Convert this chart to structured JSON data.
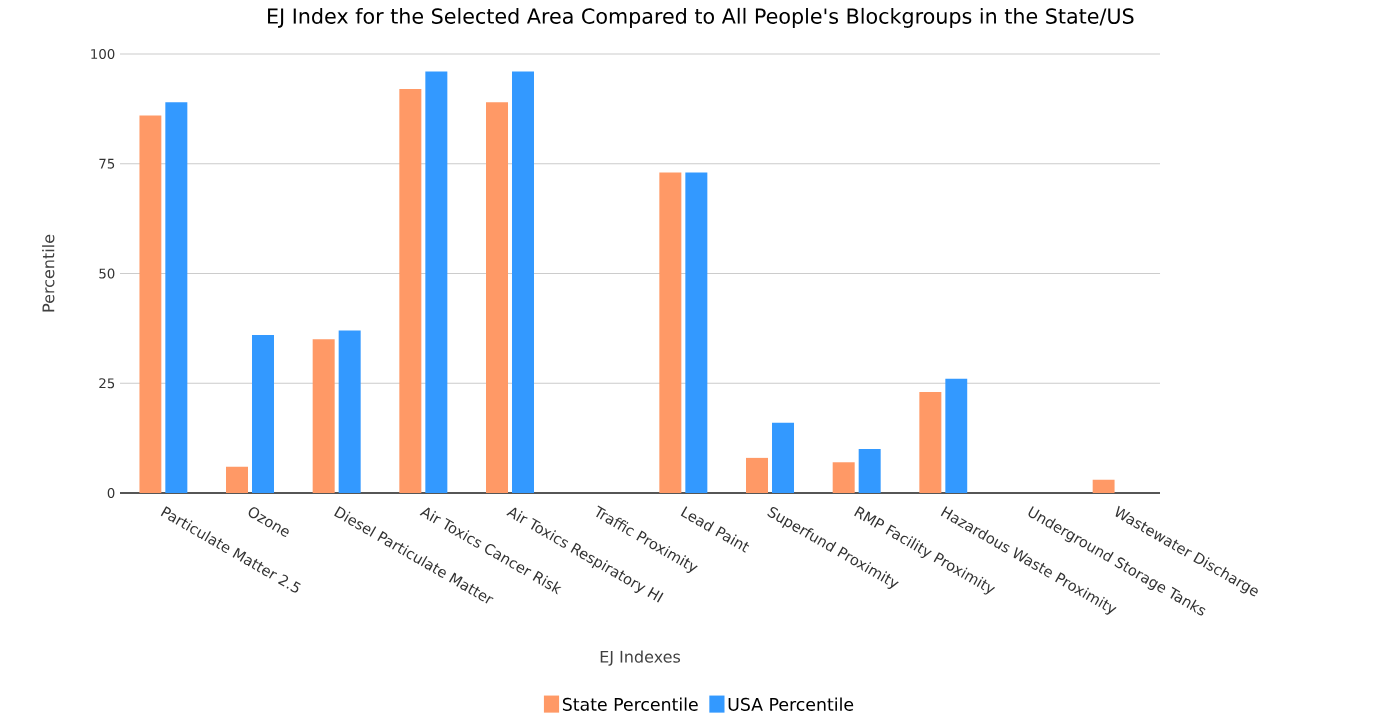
{
  "chart_data": {
    "type": "bar",
    "title": "EJ Index for the Selected Area Compared to All People's Blockgroups in the State/US",
    "xlabel": "EJ Indexes",
    "ylabel": "Percentile",
    "categories": [
      "Particulate Matter 2.5",
      "Ozone",
      "Diesel Particulate Matter",
      "Air Toxics Cancer Risk",
      "Air Toxics Respiratory HI",
      "Traffic Proximity",
      "Lead Paint",
      "Superfund Proximity",
      "RMP Facility Proximity",
      "Hazardous Waste Proximity",
      "Underground Storage Tanks",
      "Wastewater Discharge"
    ],
    "series": [
      {
        "name": "State Percentile",
        "color": "#ff9966",
        "values": [
          86,
          6,
          35,
          92,
          89,
          null,
          73,
          8,
          7,
          23,
          null,
          3
        ]
      },
      {
        "name": "USA Percentile",
        "color": "#3399ff",
        "values": [
          89,
          36,
          37,
          96,
          96,
          null,
          73,
          16,
          10,
          26,
          null,
          null
        ]
      }
    ],
    "ylim": [
      0,
      100
    ],
    "yticks": [
      0,
      25,
      50,
      75,
      100
    ],
    "grid": "y",
    "legend": "bottom"
  }
}
